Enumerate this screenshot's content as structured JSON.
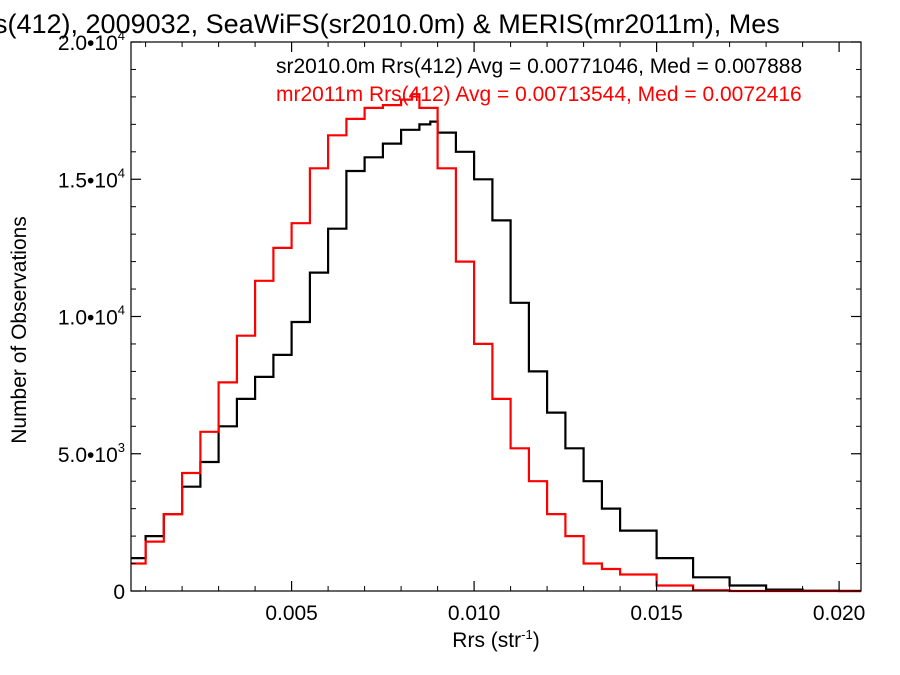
{
  "chart_data": {
    "type": "line",
    "title": "s(412), 2009032, SeaWiFS(sr2010.0m) & MERIS(mr2011m), Mes",
    "xlabel": "Rrs (str",
    "xlabel_superscript": "-1",
    "xlabel_close": ")",
    "ylabel": "Number of Observations",
    "xlim": [
      0.0006,
      0.0206
    ],
    "ylim": [
      0,
      20000
    ],
    "x_ticks": [
      0.005,
      0.01,
      0.015,
      0.02
    ],
    "x_tick_labels": [
      "0.005",
      "0.010",
      "0.015",
      "0.020"
    ],
    "y_ticks": [
      0,
      5000,
      10000,
      15000,
      20000
    ],
    "y_tick_labels": [
      {
        "mantissa": "0",
        "exp": ""
      },
      {
        "mantissa": "5.0•10",
        "exp": "3"
      },
      {
        "mantissa": "1.0•10",
        "exp": "4"
      },
      {
        "mantissa": "1.5•10",
        "exp": "4"
      },
      {
        "mantissa": "2.0•10",
        "exp": "4"
      }
    ],
    "grid": false,
    "annotations": [
      "sr2010.0m Rrs(412) Avg = 0.00771046, Med = 0.007888",
      "mr2011m Rrs(412) Avg = 0.00713544, Med = 0.0072416"
    ],
    "series": [
      {
        "color": "#000000",
        "x": [
          0.0006,
          0.001,
          0.0015,
          0.002,
          0.0025,
          0.003,
          0.0035,
          0.004,
          0.0045,
          0.005,
          0.0055,
          0.006,
          0.0065,
          0.007,
          0.0075,
          0.008,
          0.0085,
          0.0088,
          0.009,
          0.0095,
          0.01,
          0.0105,
          0.011,
          0.0115,
          0.012,
          0.0125,
          0.013,
          0.0135,
          0.014,
          0.015,
          0.016,
          0.017,
          0.018,
          0.019,
          0.02,
          0.0206
        ],
        "y": [
          1200,
          2000,
          2800,
          3800,
          4700,
          6000,
          7000,
          7800,
          8600,
          9800,
          11600,
          13200,
          15300,
          15800,
          16300,
          16800,
          17000,
          17100,
          16700,
          16000,
          15000,
          13500,
          10500,
          8000,
          6500,
          5200,
          4000,
          3000,
          2200,
          1200,
          500,
          200,
          50,
          10,
          0,
          0
        ]
      },
      {
        "color": "#ff0000",
        "x": [
          0.0006,
          0.001,
          0.0015,
          0.002,
          0.0025,
          0.003,
          0.0035,
          0.004,
          0.0045,
          0.005,
          0.0055,
          0.006,
          0.0065,
          0.007,
          0.0075,
          0.008,
          0.0083,
          0.0085,
          0.009,
          0.0095,
          0.01,
          0.0105,
          0.011,
          0.0115,
          0.012,
          0.0125,
          0.013,
          0.0135,
          0.014,
          0.015,
          0.016,
          0.017,
          0.018,
          0.019,
          0.02,
          0.0206
        ],
        "y": [
          1000,
          1800,
          2800,
          4300,
          5800,
          7600,
          9300,
          11300,
          12500,
          13400,
          15400,
          16600,
          17200,
          17600,
          17700,
          17900,
          18100,
          17600,
          15400,
          12000,
          9000,
          7000,
          5200,
          4000,
          2800,
          2000,
          1000,
          800,
          600,
          200,
          30,
          0,
          0,
          0,
          0,
          0
        ]
      }
    ]
  }
}
